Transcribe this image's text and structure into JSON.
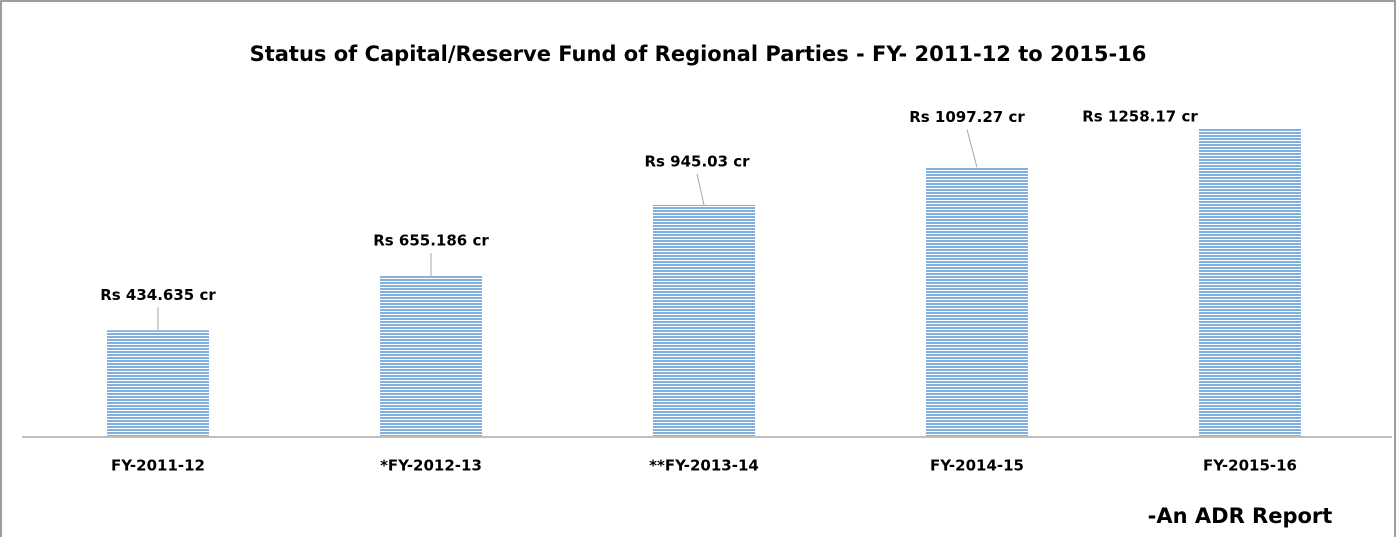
{
  "chart_data": {
    "type": "bar",
    "title": "Status of Capital/Reserve Fund of Regional Parties - FY- 2011-12 to 2015-16",
    "categories": [
      "FY-2011-12",
      "*FY-2012-13",
      "**FY-2013-14",
      "FY-2014-15",
      "FY-2015-16"
    ],
    "values": [
      434.635,
      655.186,
      945.03,
      1097.27,
      1258.17
    ],
    "value_labels": [
      "Rs 434.635 cr",
      "Rs 655.186 cr",
      "Rs 945.03 cr",
      "Rs 1097.27 cr",
      "Rs 1258.17 cr"
    ],
    "color": "#7fb0e0",
    "annotation": "-An ADR Report"
  }
}
